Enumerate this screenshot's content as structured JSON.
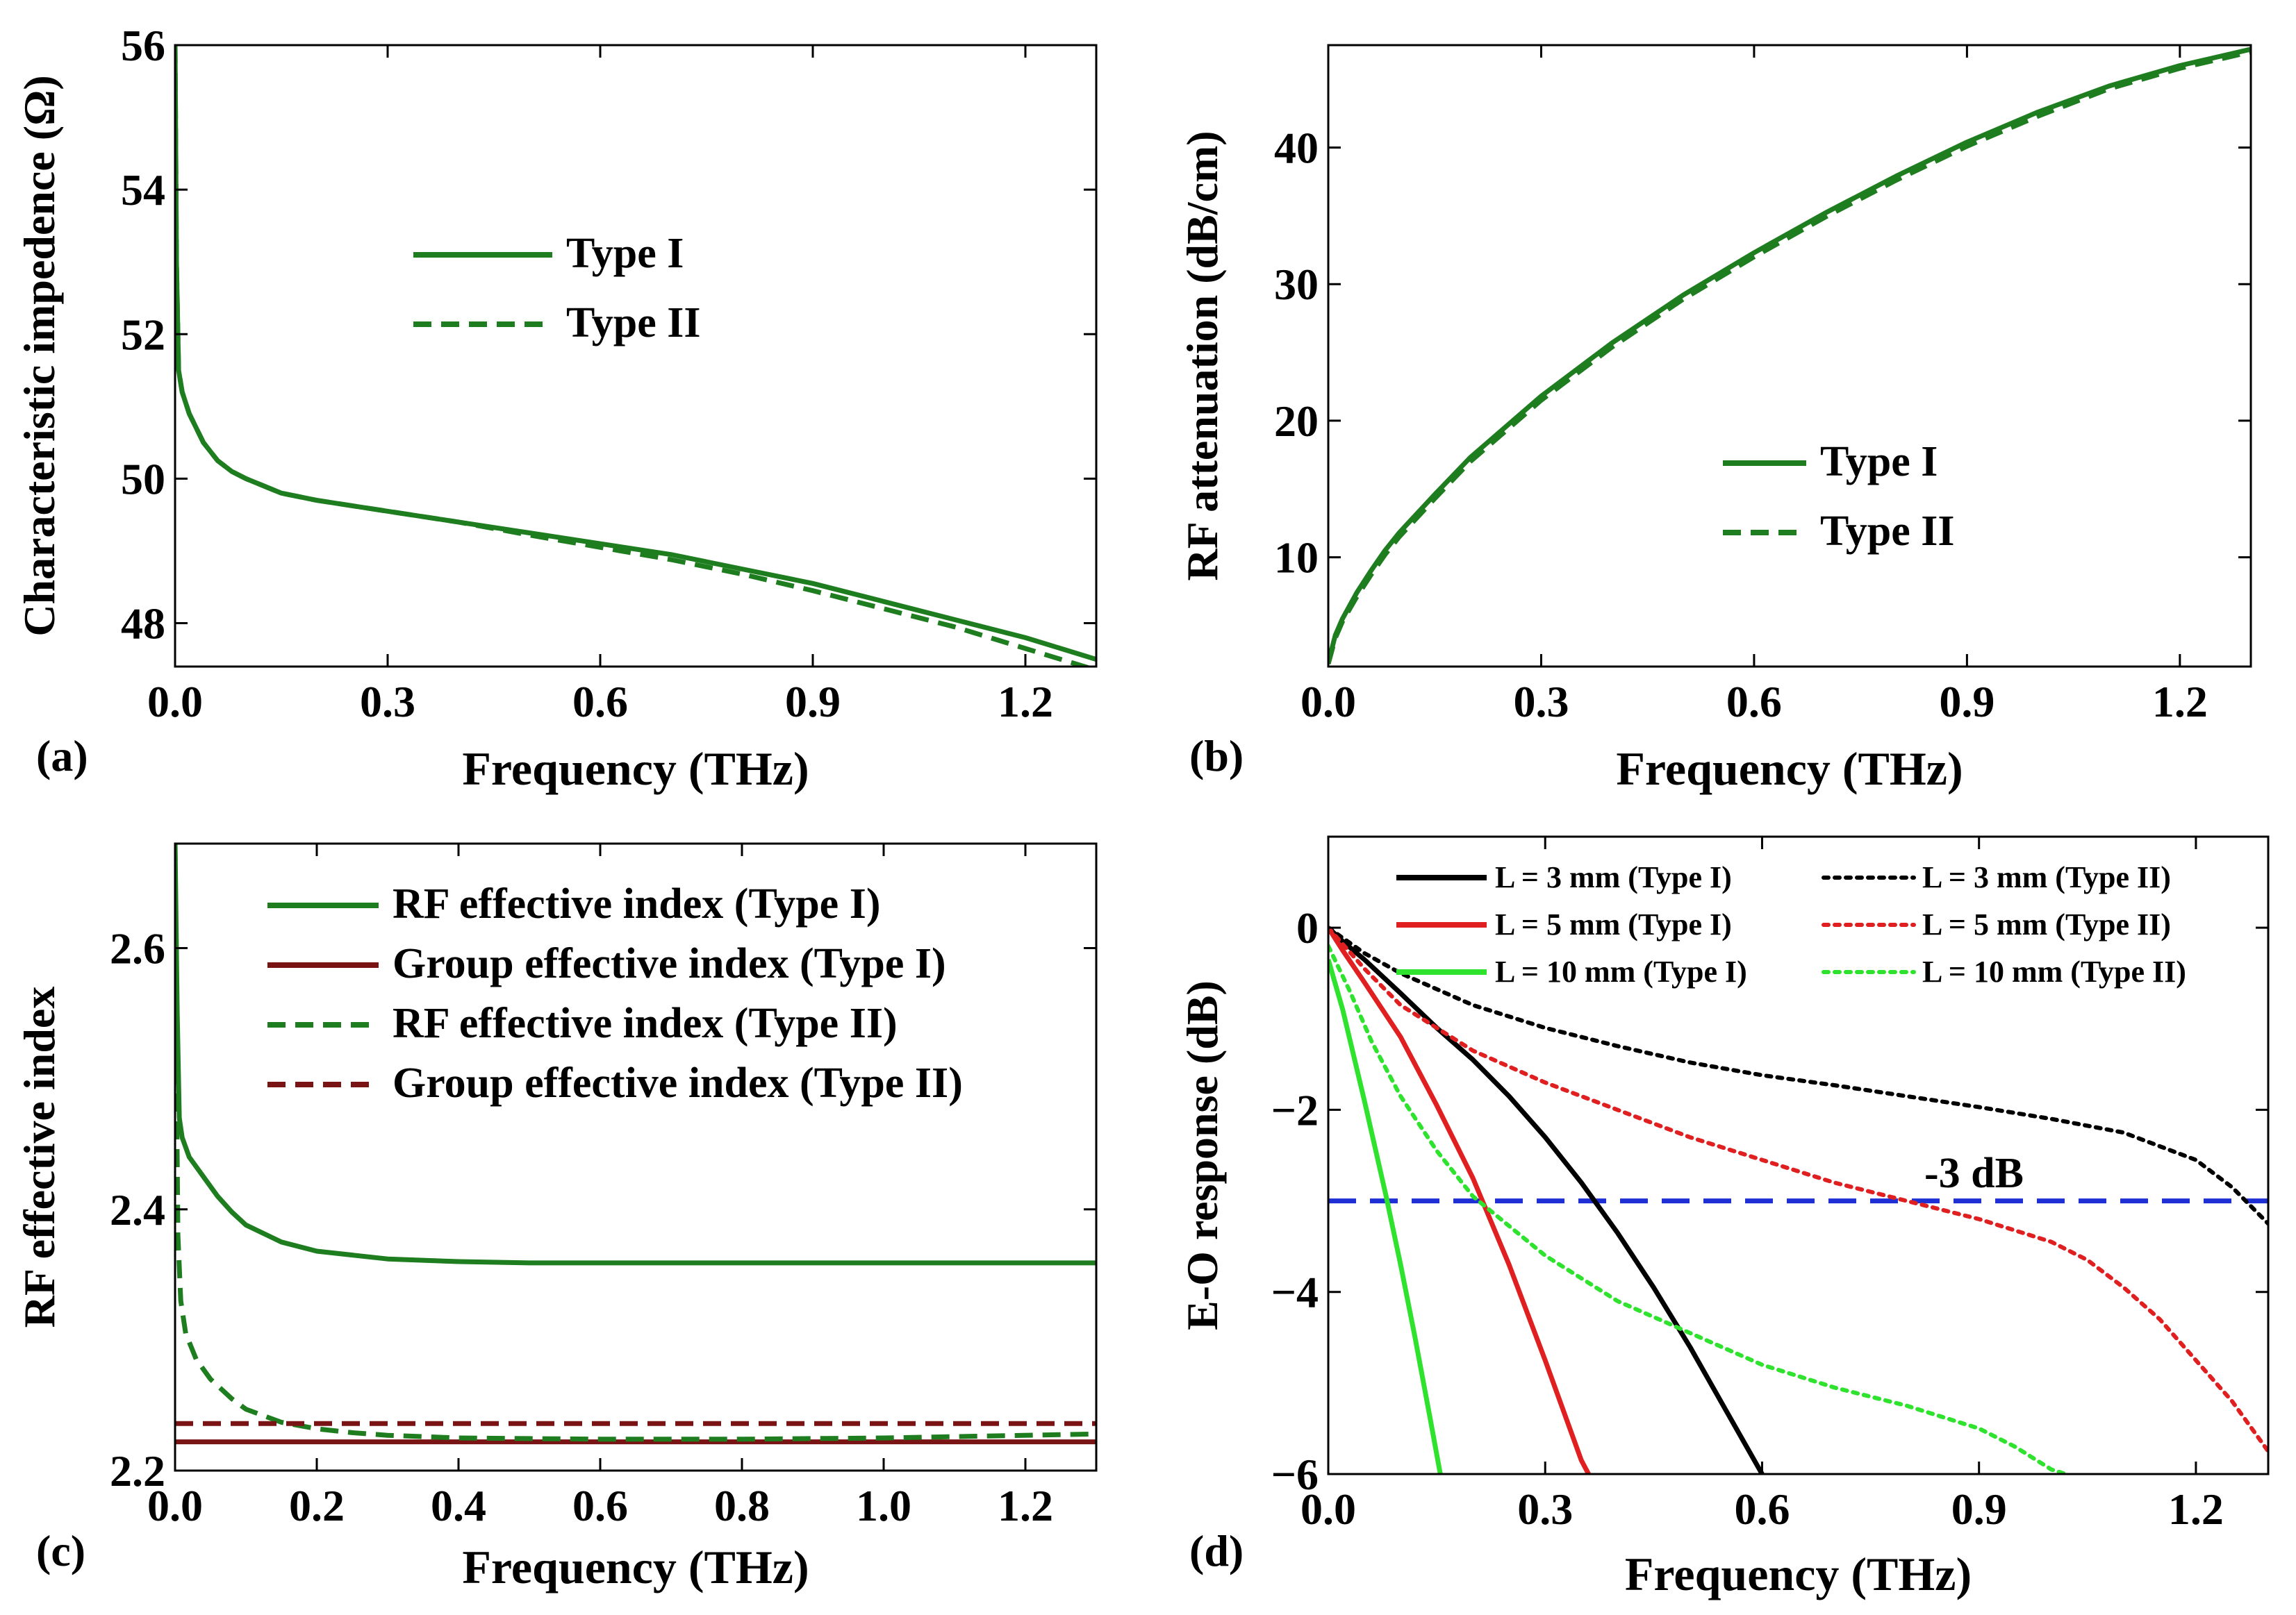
{
  "chart_data": [
    {
      "panel_label": "(a)",
      "type": "line",
      "xlabel": "Frequency (THz)",
      "ylabel": "Characteristic impedence (Ω)",
      "xlim": [
        0.0,
        1.3
      ],
      "ylim": [
        47.4,
        56.0
      ],
      "xticks": [
        "0.0",
        "0.3",
        "0.6",
        "0.9",
        "1.2"
      ],
      "yticks": [
        "48",
        "50",
        "52",
        "54",
        "56"
      ],
      "legend_position": "upper-middle",
      "series": [
        {
          "name": "Type I",
          "style": "solid",
          "color": "#1e7d1e",
          "x": [
            0.0,
            0.002,
            0.005,
            0.01,
            0.02,
            0.04,
            0.06,
            0.08,
            0.1,
            0.15,
            0.2,
            0.3,
            0.4,
            0.5,
            0.6,
            0.7,
            0.8,
            0.9,
            1.0,
            1.1,
            1.2,
            1.3
          ],
          "y": [
            56.0,
            53.0,
            51.5,
            51.2,
            50.9,
            50.5,
            50.25,
            50.1,
            50.0,
            49.8,
            49.7,
            49.55,
            49.4,
            49.25,
            49.1,
            48.95,
            48.75,
            48.55,
            48.3,
            48.05,
            47.8,
            47.5
          ]
        },
        {
          "name": "Type II",
          "style": "dashed",
          "color": "#1e7d1e",
          "x": [
            0.0,
            0.002,
            0.005,
            0.01,
            0.02,
            0.04,
            0.06,
            0.08,
            0.1,
            0.15,
            0.2,
            0.3,
            0.4,
            0.5,
            0.6,
            0.7,
            0.8,
            0.9,
            1.0,
            1.1,
            1.2,
            1.3
          ],
          "y": [
            56.0,
            53.0,
            51.5,
            51.2,
            50.9,
            50.5,
            50.25,
            50.1,
            50.0,
            49.8,
            49.7,
            49.55,
            49.4,
            49.22,
            49.05,
            48.88,
            48.68,
            48.45,
            48.2,
            47.95,
            47.65,
            47.35
          ]
        }
      ]
    },
    {
      "panel_label": "(b)",
      "type": "line",
      "xlabel": "Frequency (THz)",
      "ylabel": "RF attenuation (dB/cm)",
      "xlim": [
        0.0,
        1.3
      ],
      "ylim": [
        2.0,
        47.5
      ],
      "xticks": [
        "0.0",
        "0.3",
        "0.6",
        "0.9",
        "1.2"
      ],
      "yticks": [
        "10",
        "20",
        "30",
        "40"
      ],
      "legend_position": "lower-right",
      "series": [
        {
          "name": "Type I",
          "style": "solid",
          "color": "#1e7d1e",
          "x": [
            0.0,
            0.01,
            0.02,
            0.04,
            0.06,
            0.08,
            0.1,
            0.15,
            0.2,
            0.3,
            0.4,
            0.5,
            0.6,
            0.7,
            0.8,
            0.9,
            1.0,
            1.1,
            1.2,
            1.3
          ],
          "y": [
            2.3,
            4.3,
            5.5,
            7.4,
            9.0,
            10.5,
            11.8,
            14.6,
            17.3,
            21.8,
            25.7,
            29.2,
            32.3,
            35.2,
            37.9,
            40.4,
            42.6,
            44.5,
            46.0,
            47.2
          ]
        },
        {
          "name": "Type II",
          "style": "dashed",
          "color": "#1e7d1e",
          "x": [
            0.0,
            0.01,
            0.02,
            0.04,
            0.06,
            0.08,
            0.1,
            0.15,
            0.2,
            0.3,
            0.4,
            0.5,
            0.6,
            0.7,
            0.8,
            0.9,
            1.0,
            1.1,
            1.2,
            1.3
          ],
          "y": [
            2.2,
            4.1,
            5.3,
            7.1,
            8.7,
            10.2,
            11.5,
            14.3,
            17.0,
            21.5,
            25.4,
            28.9,
            32.0,
            34.9,
            37.6,
            40.1,
            42.3,
            44.3,
            45.8,
            47.0
          ]
        }
      ]
    },
    {
      "panel_label": "(c)",
      "type": "line",
      "xlabel": "Frequency (THz)",
      "ylabel": "RF effective index",
      "xlim": [
        0.0,
        1.3
      ],
      "ylim": [
        2.2,
        2.68
      ],
      "xticks": [
        "0.0",
        "0.2",
        "0.4",
        "0.6",
        "0.8",
        "1.0",
        "1.2"
      ],
      "yticks": [
        "2.2",
        "2.4",
        "2.6"
      ],
      "legend_position": "top",
      "series": [
        {
          "name": "RF effective index (Type I)",
          "style": "solid",
          "color": "#1e7d1e",
          "x": [
            0.0,
            0.003,
            0.006,
            0.01,
            0.02,
            0.04,
            0.06,
            0.08,
            0.1,
            0.15,
            0.2,
            0.3,
            0.4,
            0.5,
            0.6,
            0.8,
            1.0,
            1.3
          ],
          "y": [
            2.68,
            2.55,
            2.47,
            2.455,
            2.44,
            2.425,
            2.41,
            2.398,
            2.388,
            2.375,
            2.368,
            2.362,
            2.36,
            2.359,
            2.359,
            2.359,
            2.359,
            2.359
          ]
        },
        {
          "name": "Group effective index (Type I)",
          "style": "solid",
          "color": "#7a1414",
          "x": [
            0.0,
            1.3
          ],
          "y": [
            2.222,
            2.222
          ]
        },
        {
          "name": "RF effective index (Type II)",
          "style": "dashed",
          "color": "#1e7d1e",
          "x": [
            0.0,
            0.002,
            0.004,
            0.008,
            0.015,
            0.03,
            0.05,
            0.08,
            0.1,
            0.15,
            0.2,
            0.25,
            0.3,
            0.4,
            0.6,
            0.8,
            1.0,
            1.3
          ],
          "y": [
            2.68,
            2.5,
            2.38,
            2.33,
            2.305,
            2.285,
            2.27,
            2.255,
            2.247,
            2.237,
            2.232,
            2.229,
            2.227,
            2.225,
            2.224,
            2.224,
            2.225,
            2.228
          ]
        },
        {
          "name": "Group effective index (Type II)",
          "style": "dashed",
          "color": "#7a1414",
          "x": [
            0.0,
            1.3
          ],
          "y": [
            2.236,
            2.236
          ]
        }
      ]
    },
    {
      "panel_label": "(d)",
      "type": "line",
      "xlabel": "Frequency (THz)",
      "ylabel": "E-O response (dB)",
      "xlim": [
        0.0,
        1.3
      ],
      "ylim": [
        -6.0,
        1.0
      ],
      "xticks": [
        "0.0",
        "0.3",
        "0.6",
        "0.9",
        "1.2"
      ],
      "yticks": [
        "0",
        "−2",
        "−4",
        "−6"
      ],
      "legend_position": "top",
      "annotation": "-3 dB",
      "reference_line": {
        "y": -3.0,
        "style": "dashed",
        "color": "#1f2fd6"
      },
      "series": [
        {
          "name": "L = 3 mm (Type I)",
          "style": "solid",
          "color": "#000000",
          "x": [
            0.0,
            0.02,
            0.05,
            0.1,
            0.15,
            0.2,
            0.25,
            0.3,
            0.35,
            0.4,
            0.45,
            0.5,
            0.55,
            0.6
          ],
          "y": [
            0.0,
            -0.15,
            -0.35,
            -0.72,
            -1.1,
            -1.45,
            -1.85,
            -2.3,
            -2.8,
            -3.35,
            -3.95,
            -4.6,
            -5.3,
            -6.0
          ]
        },
        {
          "name": "L = 5 mm (Type I)",
          "style": "solid",
          "color": "#e02020",
          "x": [
            0.0,
            0.02,
            0.05,
            0.1,
            0.15,
            0.2,
            0.25,
            0.3,
            0.35,
            0.36
          ],
          "y": [
            0.0,
            -0.25,
            -0.6,
            -1.2,
            -1.95,
            -2.75,
            -3.7,
            -4.75,
            -5.85,
            -6.0
          ]
        },
        {
          "name": "L = 10 mm (Type I)",
          "style": "solid",
          "color": "#2ee22e",
          "x": [
            0.0,
            0.02,
            0.05,
            0.08,
            0.1,
            0.12,
            0.14,
            0.155
          ],
          "y": [
            -0.35,
            -0.9,
            -1.9,
            -2.95,
            -3.7,
            -4.5,
            -5.35,
            -6.0
          ]
        },
        {
          "name": "L = 3 mm (Type II)",
          "style": "dotted",
          "color": "#000000",
          "x": [
            0.0,
            0.05,
            0.1,
            0.2,
            0.3,
            0.4,
            0.5,
            0.6,
            0.7,
            0.8,
            0.9,
            1.0,
            1.1,
            1.2,
            1.25,
            1.3
          ],
          "y": [
            0.0,
            -0.28,
            -0.5,
            -0.85,
            -1.1,
            -1.3,
            -1.48,
            -1.62,
            -1.73,
            -1.85,
            -1.97,
            -2.1,
            -2.25,
            -2.55,
            -2.85,
            -3.25
          ]
        },
        {
          "name": "L = 5 mm (Type II)",
          "style": "dotted",
          "color": "#e02020",
          "x": [
            0.0,
            0.05,
            0.1,
            0.2,
            0.3,
            0.4,
            0.5,
            0.6,
            0.7,
            0.8,
            0.9,
            1.0,
            1.05,
            1.1,
            1.15,
            1.2,
            1.25,
            1.3
          ],
          "y": [
            0.0,
            -0.45,
            -0.85,
            -1.35,
            -1.7,
            -2.0,
            -2.3,
            -2.55,
            -2.8,
            -3.0,
            -3.2,
            -3.45,
            -3.65,
            -3.95,
            -4.3,
            -4.75,
            -5.2,
            -5.75
          ]
        },
        {
          "name": "L = 10 mm (Type II)",
          "style": "dotted",
          "color": "#2ee22e",
          "x": [
            0.0,
            0.03,
            0.06,
            0.1,
            0.15,
            0.2,
            0.3,
            0.4,
            0.5,
            0.6,
            0.7,
            0.8,
            0.9,
            0.95,
            1.0,
            1.02
          ],
          "y": [
            -0.2,
            -0.7,
            -1.25,
            -1.85,
            -2.45,
            -2.95,
            -3.6,
            -4.1,
            -4.45,
            -4.8,
            -5.05,
            -5.25,
            -5.5,
            -5.7,
            -5.95,
            -6.0
          ]
        }
      ]
    }
  ]
}
